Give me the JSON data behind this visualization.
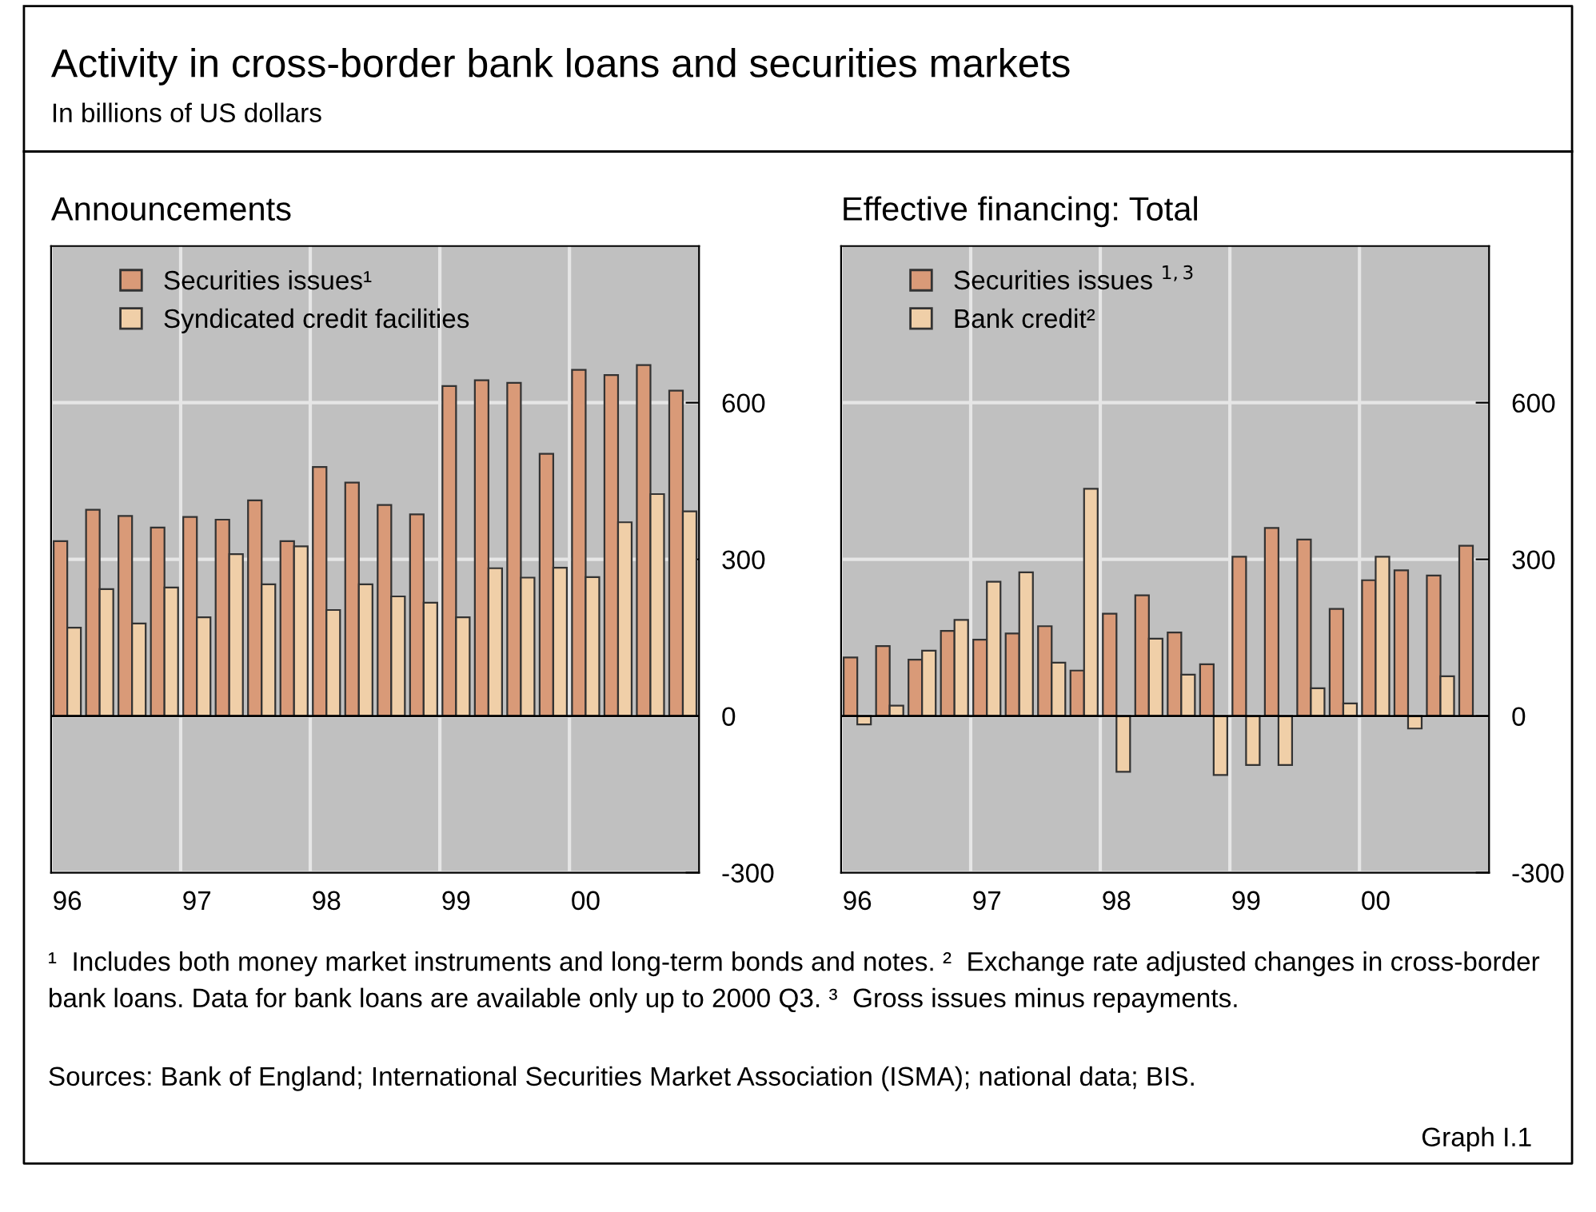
{
  "chart_data": [
    {
      "type": "bar",
      "title": "Announcements",
      "categories": [
        "96",
        null,
        null,
        null,
        "97",
        null,
        null,
        null,
        "98",
        null,
        null,
        null,
        "99",
        null,
        null,
        null,
        "00",
        null,
        null,
        null
      ],
      "series": [
        {
          "name": "Securities issues¹",
          "color": "#d99a78",
          "values": [
            335,
            395,
            383,
            361,
            381,
            376,
            413,
            335,
            477,
            447,
            404,
            386,
            632,
            643,
            638,
            502,
            663,
            653,
            672,
            623
          ]
        },
        {
          "name": "Syndicated credit facilities",
          "color": "#f0cfa8",
          "values": [
            169,
            243,
            177,
            246,
            189,
            310,
            252,
            325,
            203,
            252,
            229,
            217,
            189,
            283,
            265,
            284,
            266,
            371,
            425,
            392
          ]
        }
      ],
      "ylim": [
        -300,
        900
      ],
      "yticks": [
        -300,
        0,
        300,
        600
      ],
      "grid": true,
      "legend": "top left",
      "annotations": [
        "Activity in cross-border bank loans and securities markets",
        "In billions of US dollars"
      ]
    },
    {
      "type": "bar",
      "title": "Effective financing: Total",
      "categories": [
        "96",
        null,
        null,
        null,
        "97",
        null,
        null,
        null,
        "98",
        null,
        null,
        null,
        "99",
        null,
        null,
        null,
        "00",
        null,
        null,
        null
      ],
      "series": [
        {
          "name": "Securities issues $^{1,3}$",
          "color": "#d99a78",
          "values": [
            112,
            134,
            108,
            163,
            146,
            158,
            172,
            87,
            196,
            231,
            160,
            99,
            305,
            360,
            338,
            205,
            260,
            279,
            269,
            326
          ]
        },
        {
          "name": "Bank credit²",
          "color": "#f0cfa8",
          "values": [
            -16,
            20,
            125,
            184,
            257,
            275,
            102,
            435,
            -107,
            148,
            79,
            -113,
            -94,
            -94,
            53,
            24,
            305,
            -24,
            76,
            null
          ]
        }
      ],
      "ylim": [
        -300,
        900
      ],
      "yticks": [
        -300,
        0,
        300,
        600
      ],
      "grid": true,
      "legend": "top left",
      "annotations": [
        "¹  Includes both money market instruments and long-term bonds and notes. ²  Exchange rate adjusted changes in cross-border bank loans. Data for bank loans are available only up to 2000 Q3. ³  Gross issues minus repayments.",
        "Sources: Bank of England; International Securities Market Association (ISMA); national data; BIS.",
        "Graph I.1"
      ]
    }
  ]
}
